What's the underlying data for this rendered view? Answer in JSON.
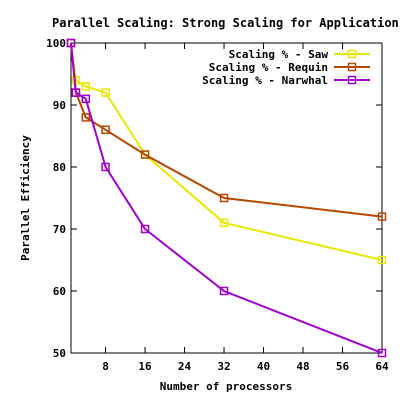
{
  "chart_data": {
    "type": "line",
    "title": "Parallel Scaling: Strong Scaling for Application X",
    "xlabel": "Number of processors",
    "ylabel": "Parallel Efficiency",
    "xlim": [
      1,
      64
    ],
    "ylim": [
      50,
      100
    ],
    "xticks": [
      8,
      16,
      24,
      32,
      40,
      48,
      56,
      64
    ],
    "yticks": [
      50,
      60,
      70,
      80,
      90,
      100
    ],
    "grid": false,
    "legend_position": "top-right",
    "series": [
      {
        "name": "Scaling % - Saw",
        "color": "#e8e800",
        "marker": "open-square",
        "x": [
          1,
          2,
          4,
          8,
          16,
          32,
          64
        ],
        "y": [
          100,
          94,
          93,
          92,
          82,
          71,
          65
        ]
      },
      {
        "name": "Scaling % - Requin",
        "color": "#b34700",
        "marker": "open-square",
        "x": [
          1,
          2,
          4,
          8,
          16,
          32,
          64
        ],
        "y": [
          100,
          92,
          88,
          86,
          82,
          75,
          72
        ]
      },
      {
        "name": "Scaling % - Narwhal",
        "color": "#a000d0",
        "marker": "open-square",
        "x": [
          1,
          2,
          4,
          8,
          16,
          32,
          64
        ],
        "y": [
          100,
          92,
          91,
          80,
          70,
          60,
          50
        ]
      }
    ]
  }
}
